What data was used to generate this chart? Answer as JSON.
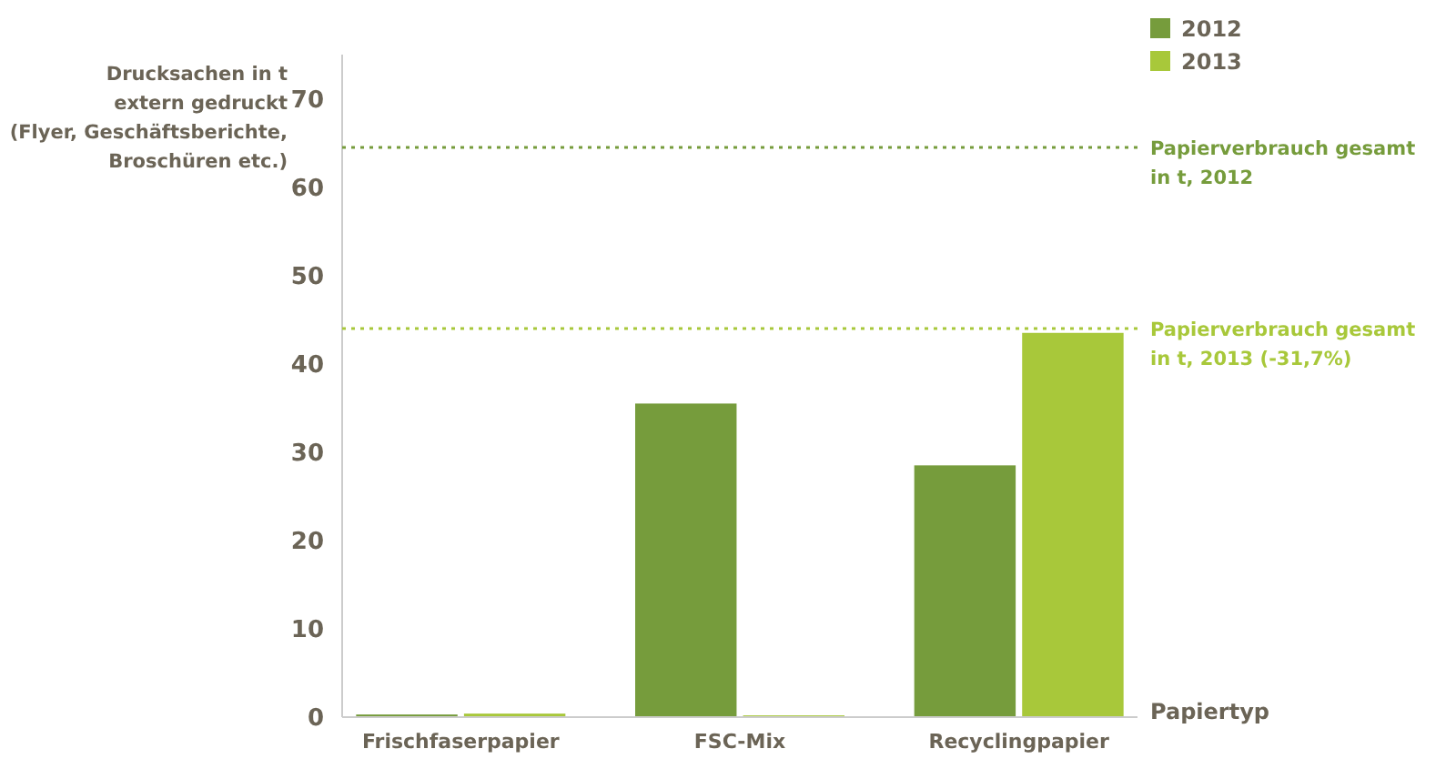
{
  "chart_data": {
    "type": "bar",
    "ylabel": "Drucksachen in t\nextern gedruckt\n(Flyer, Geschäftsberichte,\nBroschüren etc.)",
    "xlabel": "Papiertyp",
    "categories": [
      "Frischfaserpapier",
      "FSC-Mix",
      "Recyclingpapier"
    ],
    "series": [
      {
        "name": "2012",
        "color": "#769c3c",
        "values": [
          0.3,
          35.5,
          28.5
        ]
      },
      {
        "name": "2013",
        "color": "#a8c83a",
        "values": [
          0.4,
          0.2,
          43.5
        ]
      }
    ],
    "ylim": [
      0,
      75
    ],
    "yticks": [
      0,
      10,
      20,
      30,
      40,
      50,
      60,
      70
    ],
    "grid": false,
    "legend": "top right",
    "ref_lines": [
      {
        "axis": "y",
        "value": 64.5,
        "label": "Papierverbrauch gesamt\nin t, 2012",
        "color": "#769c3c",
        "line_style": "dotted"
      },
      {
        "axis": "y",
        "value": 44,
        "label": "Papierverbrauch gesamt\nin t, 2013 (-31,7%)",
        "color": "#a8c83a",
        "line_style": "dotted"
      }
    ]
  }
}
